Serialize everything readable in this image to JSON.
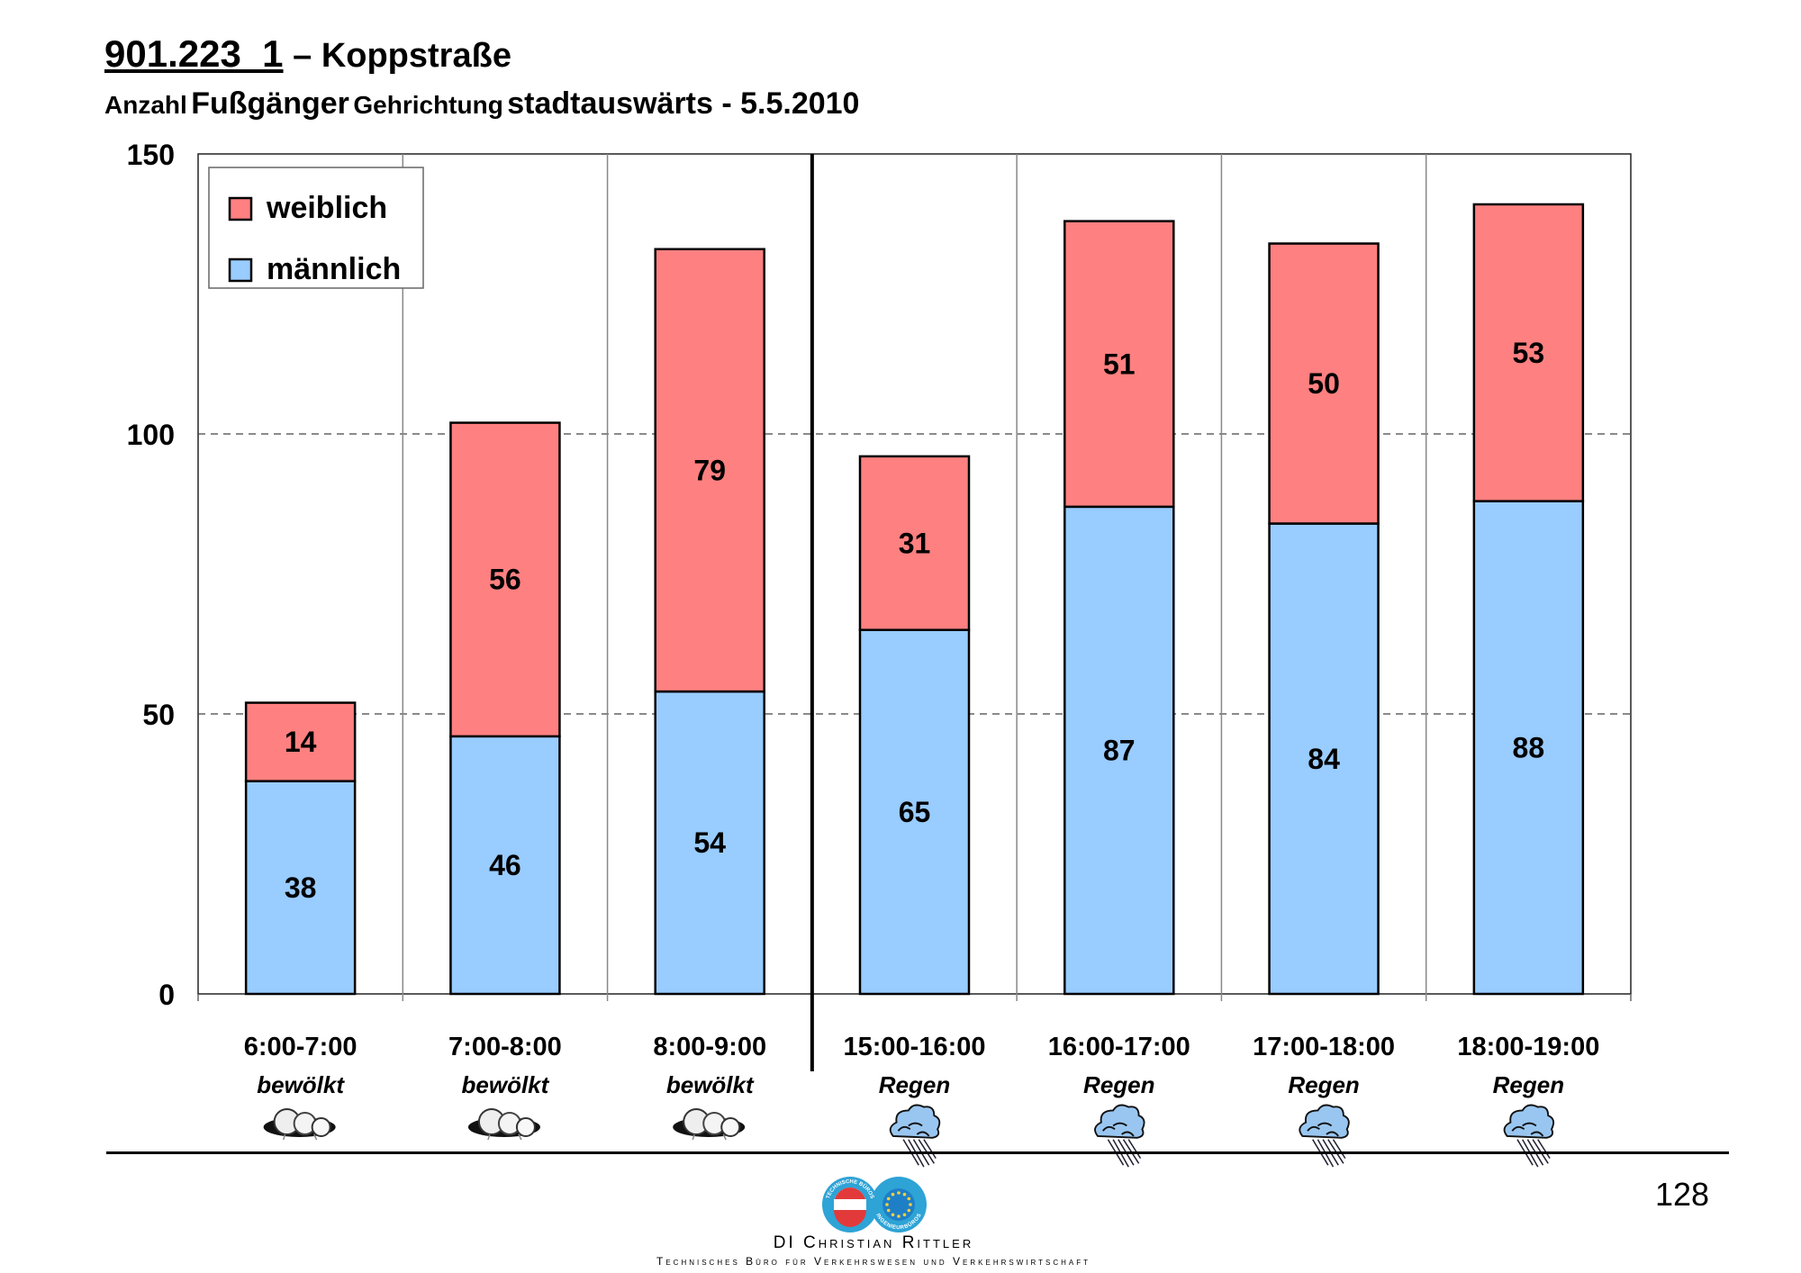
{
  "header": {
    "code": "901.223_1",
    "dash": "–",
    "street": "Koppstraße",
    "subtitle_parts": [
      {
        "text": "Anzahl",
        "size": "sm"
      },
      {
        "text": "Fußgänger",
        "size": "lg"
      },
      {
        "text": "Gehrichtung",
        "size": "sm"
      },
      {
        "text": "stadtauswärts - 5.5.2010",
        "size": "lg"
      }
    ]
  },
  "chart_data": {
    "type": "bar",
    "stacked": true,
    "title": "901.223_1 – Koppstraße",
    "subtitle": "Anzahl Fußgänger Gehrichtung stadtauswärts - 5.5.2010",
    "categories": [
      "6:00-7:00",
      "7:00-8:00",
      "8:00-9:00",
      "15:00-16:00",
      "16:00-17:00",
      "17:00-18:00",
      "18:00-19:00"
    ],
    "weather": [
      "bewölkt",
      "bewölkt",
      "bewölkt",
      "Regen",
      "Regen",
      "Regen",
      "Regen"
    ],
    "weather_icons": [
      "cloud-icon",
      "cloud-icon",
      "cloud-icon",
      "rain-cloud-icon",
      "rain-cloud-icon",
      "rain-cloud-icon",
      "rain-cloud-icon"
    ],
    "series": [
      {
        "name": "männlich",
        "color": "#99ccff",
        "values": [
          38,
          46,
          54,
          65,
          87,
          84,
          88
        ]
      },
      {
        "name": "weiblich",
        "color": "#ff8080",
        "values": [
          14,
          56,
          79,
          31,
          51,
          50,
          53
        ]
      }
    ],
    "legend_order": [
      "weiblich",
      "männlich"
    ],
    "legend_position": "top-left",
    "ylim": [
      0,
      150
    ],
    "yticks": [
      0,
      50,
      100,
      150
    ],
    "grid": "dashed horizontal at 50 and 100",
    "xlabel": "",
    "ylabel": "",
    "separator_after_category": 2
  },
  "footer": {
    "page_number": "128",
    "company": "DI Christian Rittler",
    "tagline": "Technisches Büro für Verkehrswesen und Verkehrswirtschaft",
    "logo_ring_left": "TECHNISCHE BÜROS",
    "logo_ring_right": "INGENIEURBÜROS"
  }
}
